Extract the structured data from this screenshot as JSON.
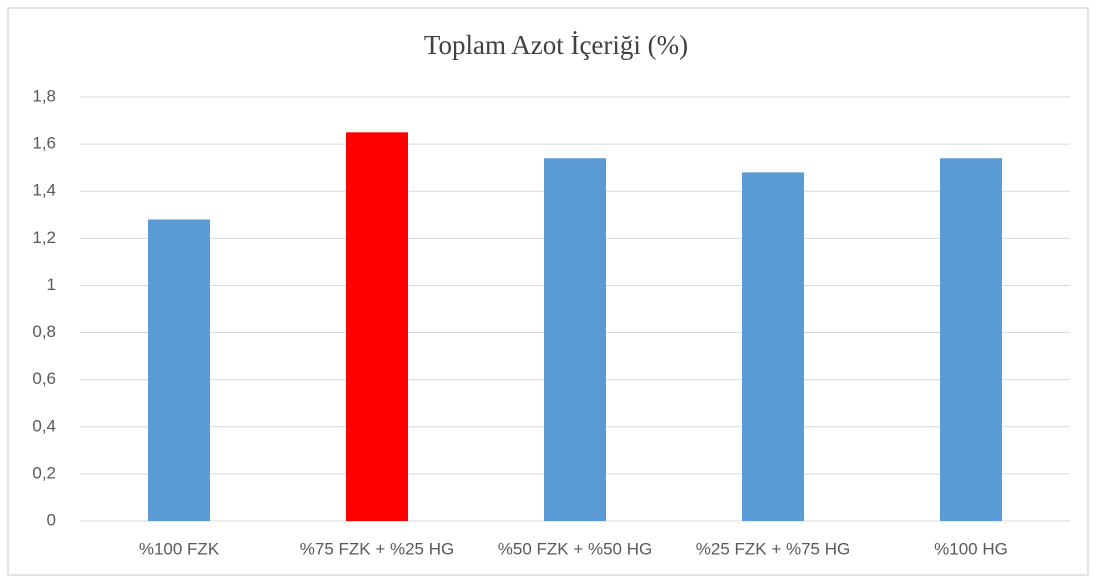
{
  "chart_data": {
    "type": "bar",
    "title": "Toplam Azot İçeriği (%)",
    "categories": [
      "%100 FZK",
      "%75 FZK + %25 HG",
      "%50 FZK + %50 HG",
      "%25 FZK + %75 HG",
      "%100 HG"
    ],
    "values": [
      1.28,
      1.65,
      1.54,
      1.48,
      1.54
    ],
    "colors": [
      "#5b9bd5",
      "#ff0000",
      "#5b9bd5",
      "#5b9bd5",
      "#5b9bd5"
    ],
    "ylim": [
      0,
      1.8
    ],
    "yticks": [
      0,
      {
        "value": 0.2,
        "label": "0,2"
      },
      {
        "value": 0.4,
        "label": "0,4"
      },
      {
        "value": 0.6,
        "label": "0,6"
      },
      {
        "value": 0.8,
        "label": "0,8"
      },
      1,
      {
        "value": 1.2,
        "label": "1,2"
      },
      {
        "value": 1.4,
        "label": "1,4"
      },
      {
        "value": 1.6,
        "label": "1,6"
      },
      {
        "value": 1.8,
        "label": "1,8"
      }
    ],
    "grid": true
  }
}
